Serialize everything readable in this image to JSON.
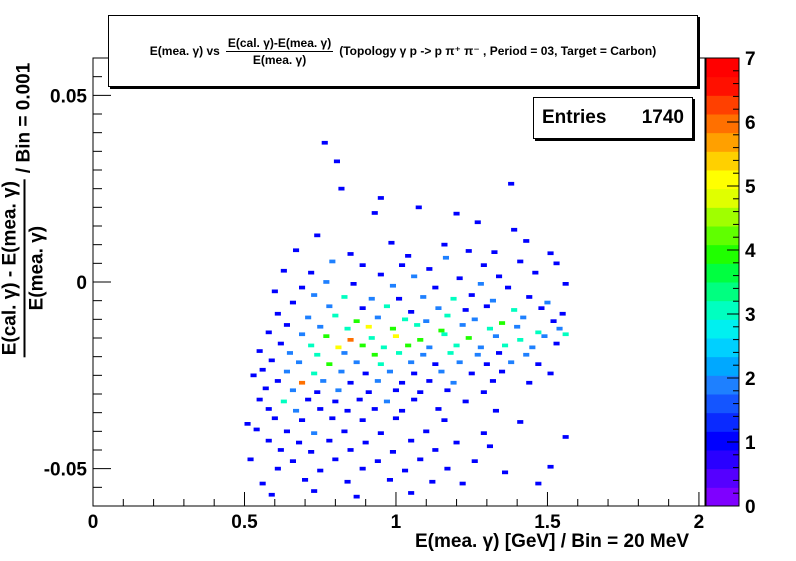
{
  "title": {
    "lead": "E(mea. γ) vs",
    "fraction_numerator": "E(cal. γ)-E(mea. γ)",
    "fraction_denominator": "E(mea. γ)",
    "rest": "(Topology γ p -> p π⁺ π⁻ , Period = 03, Target = Carbon)"
  },
  "stats": {
    "label": "Entries",
    "value": "1740"
  },
  "axes": {
    "x_title": "E(mea. γ) [GeV] / Bin = 20 MeV",
    "y_title_numerator": "E(cal. γ) - E(mea. γ)",
    "y_title_denominator": "E(mea. γ)",
    "y_title_suffix": "/ Bin = 0.001"
  },
  "chart_data": {
    "type": "heatmap",
    "xlim": [
      0,
      2.02
    ],
    "ylim": [
      -0.06,
      0.06
    ],
    "x_ticks": [
      {
        "value": 0,
        "label": "0"
      },
      {
        "value": 0.5,
        "label": "0.5"
      },
      {
        "value": 1,
        "label": "1"
      },
      {
        "value": 1.5,
        "label": "1.5"
      },
      {
        "value": 2,
        "label": "2"
      }
    ],
    "y_ticks": [
      {
        "value": 0.05,
        "label": "0.05"
      },
      {
        "value": 0,
        "label": "0"
      },
      {
        "value": -0.05,
        "label": "-0.05"
      }
    ],
    "x_bin_width": 0.02,
    "y_bin_width": 0.001,
    "z_range": [
      0,
      7
    ],
    "z_ticks": [
      {
        "value": 0,
        "label": "0"
      },
      {
        "value": 1,
        "label": "1"
      },
      {
        "value": 2,
        "label": "2"
      },
      {
        "value": 3,
        "label": "3"
      },
      {
        "value": 4,
        "label": "4"
      },
      {
        "value": 5,
        "label": "5"
      },
      {
        "value": 6,
        "label": "6"
      },
      {
        "value": 7,
        "label": "7"
      }
    ],
    "palette": [
      "#7f00ff",
      "#5500ff",
      "#2a00ff",
      "#0000ff",
      "#0a2aff",
      "#1455ff",
      "#1e80ff",
      "#00a8ff",
      "#00d0ff",
      "#00f0f0",
      "#00ffc0",
      "#00ff80",
      "#00ff40",
      "#20ff00",
      "#60ff00",
      "#a0ff00",
      "#e0ff00",
      "#ffff00",
      "#ffd000",
      "#ffa000",
      "#ff7000",
      "#ff4000",
      "#ff1000",
      "#ff0000"
    ],
    "points": [
      [
        0.755,
        0.0368,
        1
      ],
      [
        0.795,
        0.0318,
        1
      ],
      [
        0.81,
        0.0245,
        1
      ],
      [
        0.94,
        0.022,
        1
      ],
      [
        1.37,
        0.0258,
        1
      ],
      [
        1.065,
        0.0195,
        1
      ],
      [
        0.92,
        0.018,
        1
      ],
      [
        1.19,
        0.0178,
        1
      ],
      [
        1.26,
        0.0155,
        1
      ],
      [
        1.38,
        0.0135,
        1
      ],
      [
        0.73,
        0.012,
        1
      ],
      [
        0.975,
        0.01,
        1
      ],
      [
        1.15,
        0.0095,
        1
      ],
      [
        1.42,
        0.0105,
        1
      ],
      [
        1.315,
        0.0075,
        1
      ],
      [
        0.66,
        0.008,
        1
      ],
      [
        0.84,
        0.007,
        1
      ],
      [
        1.03,
        0.0065,
        1
      ],
      [
        1.23,
        0.0078,
        1
      ],
      [
        1.5,
        0.0072,
        1
      ],
      [
        1.155,
        0.006,
        2
      ],
      [
        0.78,
        0.005,
        2
      ],
      [
        0.88,
        0.004,
        1
      ],
      [
        1.01,
        0.004,
        1
      ],
      [
        1.1,
        0.003,
        1
      ],
      [
        1.28,
        0.004,
        1
      ],
      [
        1.4,
        0.005,
        1
      ],
      [
        1.52,
        0.0045,
        1
      ],
      [
        0.62,
        0.0025,
        1
      ],
      [
        0.71,
        0.002,
        1
      ],
      [
        0.94,
        0.0015,
        1
      ],
      [
        1.05,
        0.001,
        2
      ],
      [
        1.2,
        0.0005,
        1
      ],
      [
        1.33,
        0.001,
        1
      ],
      [
        1.45,
        0.002,
        1
      ],
      [
        0.76,
        -0.0005,
        2
      ],
      [
        0.85,
        -0.001,
        1
      ],
      [
        0.98,
        -0.0015,
        2
      ],
      [
        1.12,
        -0.002,
        1
      ],
      [
        1.27,
        -0.001,
        2
      ],
      [
        1.36,
        -0.002,
        1
      ],
      [
        1.55,
        -0.001,
        1
      ],
      [
        0.68,
        -0.002,
        1
      ],
      [
        0.59,
        -0.003,
        1
      ],
      [
        0.72,
        -0.004,
        2
      ],
      [
        0.82,
        -0.0045,
        3
      ],
      [
        0.91,
        -0.005,
        2
      ],
      [
        1.0,
        -0.005,
        1
      ],
      [
        1.08,
        -0.0045,
        2
      ],
      [
        1.18,
        -0.005,
        3
      ],
      [
        1.24,
        -0.004,
        1
      ],
      [
        1.31,
        -0.0055,
        2
      ],
      [
        1.43,
        -0.0045,
        1
      ],
      [
        1.49,
        -0.006,
        2
      ],
      [
        0.65,
        -0.006,
        1
      ],
      [
        0.77,
        -0.007,
        2
      ],
      [
        0.88,
        -0.0075,
        1
      ],
      [
        0.96,
        -0.007,
        3
      ],
      [
        1.04,
        -0.0085,
        1
      ],
      [
        1.13,
        -0.0075,
        2
      ],
      [
        1.22,
        -0.008,
        1
      ],
      [
        1.29,
        -0.007,
        1
      ],
      [
        1.38,
        -0.008,
        3
      ],
      [
        1.47,
        -0.0075,
        1
      ],
      [
        1.54,
        -0.009,
        1
      ],
      [
        0.6,
        -0.009,
        1
      ],
      [
        0.7,
        -0.01,
        2
      ],
      [
        0.79,
        -0.0095,
        3
      ],
      [
        0.86,
        -0.011,
        4
      ],
      [
        0.93,
        -0.01,
        2
      ],
      [
        1.02,
        -0.0105,
        3
      ],
      [
        1.09,
        -0.011,
        2
      ],
      [
        1.16,
        -0.0095,
        3
      ],
      [
        1.25,
        -0.0105,
        2
      ],
      [
        1.34,
        -0.0115,
        4
      ],
      [
        1.41,
        -0.01,
        2
      ],
      [
        1.51,
        -0.011,
        1
      ],
      [
        0.63,
        -0.012,
        1
      ],
      [
        0.74,
        -0.0125,
        2
      ],
      [
        0.83,
        -0.013,
        3
      ],
      [
        0.9,
        -0.0125,
        5
      ],
      [
        0.98,
        -0.013,
        4
      ],
      [
        1.06,
        -0.012,
        3
      ],
      [
        1.14,
        -0.0135,
        4
      ],
      [
        1.21,
        -0.012,
        2
      ],
      [
        1.3,
        -0.013,
        3
      ],
      [
        1.39,
        -0.0125,
        2
      ],
      [
        1.46,
        -0.014,
        3
      ],
      [
        1.53,
        -0.013,
        2
      ],
      [
        0.57,
        -0.014,
        1
      ],
      [
        0.68,
        -0.0145,
        2
      ],
      [
        0.76,
        -0.015,
        4
      ],
      [
        0.84,
        -0.016,
        6
      ],
      [
        0.91,
        -0.0155,
        3
      ],
      [
        0.99,
        -0.015,
        5
      ],
      [
        1.07,
        -0.016,
        4
      ],
      [
        1.15,
        -0.0145,
        3
      ],
      [
        1.23,
        -0.0155,
        4
      ],
      [
        1.32,
        -0.015,
        2
      ],
      [
        1.4,
        -0.016,
        3
      ],
      [
        1.48,
        -0.015,
        2
      ],
      [
        1.55,
        -0.0145,
        3
      ],
      [
        0.61,
        -0.017,
        1
      ],
      [
        0.71,
        -0.0175,
        3
      ],
      [
        0.8,
        -0.018,
        5
      ],
      [
        0.88,
        -0.0175,
        4
      ],
      [
        0.95,
        -0.018,
        3
      ],
      [
        1.03,
        -0.0175,
        4
      ],
      [
        1.1,
        -0.018,
        2
      ],
      [
        1.19,
        -0.0175,
        3
      ],
      [
        1.27,
        -0.018,
        2
      ],
      [
        1.35,
        -0.0175,
        3
      ],
      [
        1.44,
        -0.018,
        2
      ],
      [
        1.52,
        -0.017,
        1
      ],
      [
        0.54,
        -0.019,
        1
      ],
      [
        0.64,
        -0.0195,
        2
      ],
      [
        0.73,
        -0.02,
        3
      ],
      [
        0.82,
        -0.0195,
        2
      ],
      [
        0.92,
        -0.02,
        4
      ],
      [
        1.0,
        -0.0195,
        3
      ],
      [
        1.08,
        -0.02,
        2
      ],
      [
        1.17,
        -0.0195,
        3
      ],
      [
        1.26,
        -0.02,
        2
      ],
      [
        1.33,
        -0.0195,
        1
      ],
      [
        1.42,
        -0.02,
        2
      ],
      [
        0.58,
        -0.0215,
        1
      ],
      [
        0.67,
        -0.022,
        2
      ],
      [
        0.77,
        -0.0225,
        4
      ],
      [
        0.86,
        -0.022,
        2
      ],
      [
        0.94,
        -0.0225,
        3
      ],
      [
        1.04,
        -0.022,
        2
      ],
      [
        1.12,
        -0.0225,
        1
      ],
      [
        1.2,
        -0.022,
        2
      ],
      [
        1.29,
        -0.0225,
        1
      ],
      [
        1.37,
        -0.022,
        2
      ],
      [
        1.46,
        -0.0225,
        1
      ],
      [
        0.55,
        -0.024,
        1
      ],
      [
        0.63,
        -0.0245,
        2
      ],
      [
        0.72,
        -0.025,
        3
      ],
      [
        0.81,
        -0.0245,
        2
      ],
      [
        0.89,
        -0.025,
        1
      ],
      [
        0.97,
        -0.0245,
        2
      ],
      [
        1.05,
        -0.025,
        1
      ],
      [
        1.14,
        -0.0245,
        2
      ],
      [
        1.24,
        -0.025,
        1
      ],
      [
        1.34,
        -0.0245,
        1
      ],
      [
        1.5,
        -0.025,
        1
      ],
      [
        0.52,
        -0.0255,
        1
      ],
      [
        0.6,
        -0.027,
        1
      ],
      [
        0.68,
        -0.0275,
        6
      ],
      [
        0.75,
        -0.027,
        2
      ],
      [
        0.84,
        -0.0275,
        1
      ],
      [
        0.93,
        -0.027,
        2
      ],
      [
        1.01,
        -0.0275,
        1
      ],
      [
        1.1,
        -0.027,
        1
      ],
      [
        1.18,
        -0.0275,
        2
      ],
      [
        1.31,
        -0.027,
        1
      ],
      [
        1.43,
        -0.0275,
        1
      ],
      [
        0.56,
        -0.029,
        1
      ],
      [
        0.65,
        -0.0295,
        2
      ],
      [
        0.73,
        -0.03,
        1
      ],
      [
        0.8,
        -0.0295,
        2
      ],
      [
        0.9,
        -0.03,
        1
      ],
      [
        0.99,
        -0.0295,
        1
      ],
      [
        1.07,
        -0.03,
        1
      ],
      [
        1.16,
        -0.0295,
        1
      ],
      [
        1.28,
        -0.03,
        1
      ],
      [
        0.54,
        -0.032,
        1
      ],
      [
        0.62,
        -0.0325,
        3
      ],
      [
        0.7,
        -0.032,
        1
      ],
      [
        0.79,
        -0.0325,
        1
      ],
      [
        0.87,
        -0.032,
        1
      ],
      [
        0.96,
        -0.0325,
        2
      ],
      [
        1.05,
        -0.032,
        1
      ],
      [
        1.22,
        -0.0325,
        1
      ],
      [
        0.5,
        -0.0385,
        1
      ],
      [
        0.57,
        -0.0345,
        1
      ],
      [
        0.66,
        -0.035,
        2
      ],
      [
        0.74,
        -0.0345,
        1
      ],
      [
        0.83,
        -0.035,
        1
      ],
      [
        0.92,
        -0.0345,
        1
      ],
      [
        1.01,
        -0.035,
        1
      ],
      [
        1.13,
        -0.0345,
        1
      ],
      [
        1.32,
        -0.035,
        1
      ],
      [
        0.59,
        -0.037,
        1
      ],
      [
        0.68,
        -0.0375,
        1
      ],
      [
        0.78,
        -0.037,
        1
      ],
      [
        0.88,
        -0.0375,
        1
      ],
      [
        0.99,
        -0.037,
        1
      ],
      [
        1.15,
        -0.0375,
        1
      ],
      [
        1.4,
        -0.038,
        1
      ],
      [
        0.53,
        -0.04,
        1
      ],
      [
        0.63,
        -0.0405,
        1
      ],
      [
        0.72,
        -0.041,
        2
      ],
      [
        0.82,
        -0.0405,
        1
      ],
      [
        0.94,
        -0.041,
        1
      ],
      [
        1.09,
        -0.0405,
        1
      ],
      [
        1.28,
        -0.041,
        1
      ],
      [
        0.57,
        -0.043,
        1
      ],
      [
        0.67,
        -0.0435,
        1
      ],
      [
        0.77,
        -0.043,
        1
      ],
      [
        0.89,
        -0.0435,
        1
      ],
      [
        1.04,
        -0.043,
        1
      ],
      [
        1.19,
        -0.0435,
        1
      ],
      [
        1.55,
        -0.042,
        1
      ],
      [
        0.61,
        -0.0455,
        1
      ],
      [
        0.71,
        -0.046,
        1
      ],
      [
        0.84,
        -0.0455,
        1
      ],
      [
        0.98,
        -0.046,
        1
      ],
      [
        1.12,
        -0.0455,
        1
      ],
      [
        0.51,
        -0.048,
        1
      ],
      [
        0.65,
        -0.0485,
        1
      ],
      [
        0.79,
        -0.048,
        1
      ],
      [
        0.93,
        -0.0485,
        1
      ],
      [
        1.07,
        -0.048,
        1
      ],
      [
        1.25,
        -0.0485,
        1
      ],
      [
        0.6,
        -0.0505,
        1
      ],
      [
        0.74,
        -0.051,
        1
      ],
      [
        0.88,
        -0.0505,
        1
      ],
      [
        1.02,
        -0.051,
        1
      ],
      [
        1.16,
        -0.0505,
        1
      ],
      [
        1.5,
        -0.05,
        1
      ],
      [
        0.55,
        -0.0545,
        1
      ],
      [
        0.69,
        -0.0535,
        1
      ],
      [
        0.83,
        -0.054,
        1
      ],
      [
        0.97,
        -0.0535,
        1
      ],
      [
        1.11,
        -0.054,
        1
      ],
      [
        1.21,
        -0.0545,
        1
      ],
      [
        0.58,
        -0.0575,
        1
      ],
      [
        0.72,
        -0.0565,
        1
      ],
      [
        1.04,
        -0.057,
        1
      ],
      [
        0.86,
        -0.058,
        1
      ],
      [
        1.46,
        -0.0545,
        1
      ],
      [
        1.35,
        -0.0515,
        1
      ],
      [
        1.3,
        -0.0445,
        1
      ]
    ]
  }
}
